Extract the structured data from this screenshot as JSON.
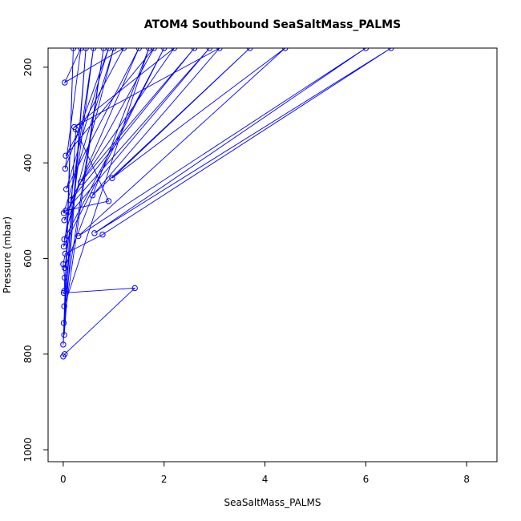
{
  "chart_data": {
    "type": "line",
    "title": "ATOM4 Southbound SeaSaltMass_PALMS",
    "xlabel": "SeaSaltMass_PALMS",
    "ylabel": "Pressure (mbar)",
    "xlim": [
      -0.3,
      8.6
    ],
    "ylim": [
      1025,
      160
    ],
    "y_reversed": true,
    "x_ticks": [
      "0",
      "2",
      "4",
      "6",
      "8"
    ],
    "x_tick_values": [
      0,
      2,
      4,
      6,
      8
    ],
    "y_ticks": [
      "200",
      "400",
      "600",
      "800",
      "1000"
    ],
    "y_tick_values": [
      200,
      400,
      600,
      800,
      1000
    ],
    "grid": false,
    "series": [
      {
        "color": "#0000ff",
        "marker": "open-circle",
        "points": [
          {
            "x": 0.0,
            "y": 805
          },
          {
            "x": 0.03,
            "y": 800
          },
          {
            "x": 1.42,
            "y": 662
          },
          {
            "x": 0.01,
            "y": 672
          },
          {
            "x": 0.02,
            "y": 668
          },
          {
            "x": 0.03,
            "y": 640
          },
          {
            "x": 0.0,
            "y": 612
          },
          {
            "x": 0.04,
            "y": 590
          },
          {
            "x": 0.78,
            "y": 550
          },
          {
            "x": 6.5,
            "y": 160
          },
          {
            "x": 0.62,
            "y": 547
          },
          {
            "x": 6.0,
            "y": 160
          },
          {
            "x": 0.3,
            "y": 553
          },
          {
            "x": 4.4,
            "y": 160
          },
          {
            "x": 0.97,
            "y": 432
          },
          {
            "x": 3.7,
            "y": 160
          },
          {
            "x": 0.58,
            "y": 468
          },
          {
            "x": 3.1,
            "y": 160
          },
          {
            "x": 0.22,
            "y": 325
          },
          {
            "x": 2.2,
            "y": 160
          },
          {
            "x": 0.35,
            "y": 440
          },
          {
            "x": 2.6,
            "y": 160
          },
          {
            "x": 0.15,
            "y": 478
          },
          {
            "x": 1.8,
            "y": 160
          },
          {
            "x": 0.05,
            "y": 385
          },
          {
            "x": 1.2,
            "y": 160
          },
          {
            "x": 0.03,
            "y": 232
          },
          {
            "x": 0.35,
            "y": 160
          },
          {
            "x": 0.04,
            "y": 412
          },
          {
            "x": 0.9,
            "y": 160
          },
          {
            "x": 0.06,
            "y": 455
          },
          {
            "x": 1.5,
            "y": 160
          },
          {
            "x": 0.02,
            "y": 520
          },
          {
            "x": 2.9,
            "y": 160
          },
          {
            "x": 0.01,
            "y": 505
          },
          {
            "x": 1.0,
            "y": 160
          },
          {
            "x": 0.02,
            "y": 560
          },
          {
            "x": 2.0,
            "y": 160
          },
          {
            "x": 0.01,
            "y": 575
          },
          {
            "x": 0.6,
            "y": 160
          },
          {
            "x": 0.03,
            "y": 620
          },
          {
            "x": 1.7,
            "y": 160
          },
          {
            "x": 0.02,
            "y": 700
          },
          {
            "x": 0.8,
            "y": 160
          },
          {
            "x": 0.01,
            "y": 735
          },
          {
            "x": 0.45,
            "y": 160
          },
          {
            "x": 0.02,
            "y": 760
          },
          {
            "x": 0.2,
            "y": 160
          },
          {
            "x": 0.0,
            "y": 780
          },
          {
            "x": 0.25,
            "y": 330
          },
          {
            "x": 0.9,
            "y": 480
          },
          {
            "x": 0.05,
            "y": 500
          }
        ]
      }
    ]
  }
}
